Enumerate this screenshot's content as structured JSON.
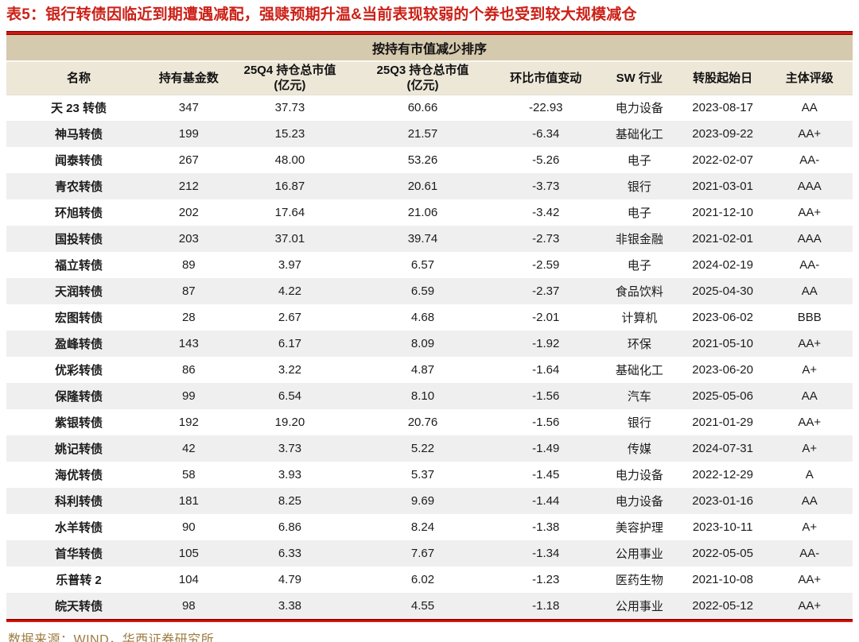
{
  "figure": {
    "title": "表5：银行转债因临近到期遭遇减配，强赎预期升温&当前表现较弱的个券也受到较大规模减仓",
    "source": "数据来源：WIND，华西证券研究所"
  },
  "table": {
    "group_header": "按持有市值减少排序",
    "columns": [
      {
        "label": "名称",
        "sub": ""
      },
      {
        "label": "持有基金数",
        "sub": ""
      },
      {
        "label": "25Q4 持仓总市值",
        "sub": "(亿元)"
      },
      {
        "label": "25Q3 持仓总市值",
        "sub": "(亿元)"
      },
      {
        "label": "环比市值变动",
        "sub": ""
      },
      {
        "label": "SW 行业",
        "sub": ""
      },
      {
        "label": "转股起始日",
        "sub": ""
      },
      {
        "label": "主体评级",
        "sub": ""
      }
    ],
    "col_keys": [
      "cell-bond-name",
      "cell-fund-count",
      "cell-25q4-value",
      "cell-25q3-value",
      "cell-qoq-change",
      "cell-sw-industry",
      "cell-conversion-start-date",
      "cell-issuer-rating"
    ],
    "rows": [
      [
        "天 23 转债",
        "347",
        "37.73",
        "60.66",
        "-22.93",
        "电力设备",
        "2023-08-17",
        "AA"
      ],
      [
        "神马转债",
        "199",
        "15.23",
        "21.57",
        "-6.34",
        "基础化工",
        "2023-09-22",
        "AA+"
      ],
      [
        "闻泰转债",
        "267",
        "48.00",
        "53.26",
        "-5.26",
        "电子",
        "2022-02-07",
        "AA-"
      ],
      [
        "青农转债",
        "212",
        "16.87",
        "20.61",
        "-3.73",
        "银行",
        "2021-03-01",
        "AAA"
      ],
      [
        "环旭转债",
        "202",
        "17.64",
        "21.06",
        "-3.42",
        "电子",
        "2021-12-10",
        "AA+"
      ],
      [
        "国投转债",
        "203",
        "37.01",
        "39.74",
        "-2.73",
        "非银金融",
        "2021-02-01",
        "AAA"
      ],
      [
        "福立转债",
        "89",
        "3.97",
        "6.57",
        "-2.59",
        "电子",
        "2024-02-19",
        "AA-"
      ],
      [
        "天润转债",
        "87",
        "4.22",
        "6.59",
        "-2.37",
        "食品饮料",
        "2025-04-30",
        "AA"
      ],
      [
        "宏图转债",
        "28",
        "2.67",
        "4.68",
        "-2.01",
        "计算机",
        "2023-06-02",
        "BBB"
      ],
      [
        "盈峰转债",
        "143",
        "6.17",
        "8.09",
        "-1.92",
        "环保",
        "2021-05-10",
        "AA+"
      ],
      [
        "优彩转债",
        "86",
        "3.22",
        "4.87",
        "-1.64",
        "基础化工",
        "2023-06-20",
        "A+"
      ],
      [
        "保隆转债",
        "99",
        "6.54",
        "8.10",
        "-1.56",
        "汽车",
        "2025-05-06",
        "AA"
      ],
      [
        "紫银转债",
        "192",
        "19.20",
        "20.76",
        "-1.56",
        "银行",
        "2021-01-29",
        "AA+"
      ],
      [
        "姚记转债",
        "42",
        "3.73",
        "5.22",
        "-1.49",
        "传媒",
        "2024-07-31",
        "A+"
      ],
      [
        "海优转债",
        "58",
        "3.93",
        "5.37",
        "-1.45",
        "电力设备",
        "2022-12-29",
        "A"
      ],
      [
        "科利转债",
        "181",
        "8.25",
        "9.69",
        "-1.44",
        "电力设备",
        "2023-01-16",
        "AA"
      ],
      [
        "水羊转债",
        "90",
        "6.86",
        "8.24",
        "-1.38",
        "美容护理",
        "2023-10-11",
        "A+"
      ],
      [
        "首华转债",
        "105",
        "6.33",
        "7.67",
        "-1.34",
        "公用事业",
        "2022-05-05",
        "AA-"
      ],
      [
        "乐普转 2",
        "104",
        "4.79",
        "6.02",
        "-1.23",
        "医药生物",
        "2021-10-08",
        "AA+"
      ],
      [
        "皖天转债",
        "98",
        "3.38",
        "4.55",
        "-1.18",
        "公用事业",
        "2022-05-12",
        "AA+"
      ]
    ]
  },
  "colors": {
    "title_red": "#cc2017",
    "rule_dark_red": "#8f0404",
    "rule_bright_red": "#e02318",
    "group_band": "#d5c9ae",
    "header_band": "#ede7d8",
    "stripe_grey": "#efefef",
    "source_gold": "#9e7b3f"
  }
}
